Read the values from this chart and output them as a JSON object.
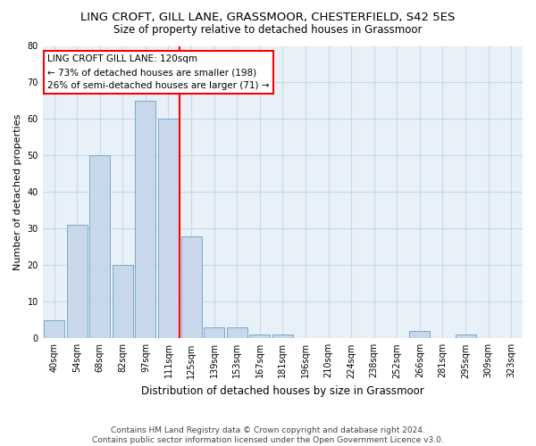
{
  "title_line1": "LING CROFT, GILL LANE, GRASSMOOR, CHESTERFIELD, S42 5ES",
  "title_line2": "Size of property relative to detached houses in Grassmoor",
  "xlabel": "Distribution of detached houses by size in Grassmoor",
  "ylabel": "Number of detached properties",
  "categories": [
    "40sqm",
    "54sqm",
    "68sqm",
    "82sqm",
    "97sqm",
    "111sqm",
    "125sqm",
    "139sqm",
    "153sqm",
    "167sqm",
    "181sqm",
    "196sqm",
    "210sqm",
    "224sqm",
    "238sqm",
    "252sqm",
    "266sqm",
    "281sqm",
    "295sqm",
    "309sqm",
    "323sqm"
  ],
  "values": [
    5,
    31,
    50,
    20,
    65,
    60,
    28,
    3,
    3,
    1,
    1,
    0,
    0,
    0,
    0,
    0,
    2,
    0,
    1,
    0,
    0
  ],
  "bar_color": "#c8d8ea",
  "bar_edge_color": "#7aaac8",
  "vline_color": "red",
  "annotation_line1": "LING CROFT GILL LANE: 120sqm",
  "annotation_line2": "← 73% of detached houses are smaller (198)",
  "annotation_line3": "26% of semi-detached houses are larger (71) →",
  "annotation_box_color": "white",
  "annotation_box_edge_color": "red",
  "ylim": [
    0,
    80
  ],
  "yticks": [
    0,
    10,
    20,
    30,
    40,
    50,
    60,
    70,
    80
  ],
  "grid_color": "#c8d8ea",
  "background_color": "#e8f0f8",
  "footer_line1": "Contains HM Land Registry data © Crown copyright and database right 2024.",
  "footer_line2": "Contains public sector information licensed under the Open Government Licence v3.0.",
  "title_fontsize": 9.5,
  "subtitle_fontsize": 8.5,
  "label_fontsize": 8,
  "tick_fontsize": 7,
  "annot_fontsize": 7.5,
  "footer_fontsize": 6.5
}
